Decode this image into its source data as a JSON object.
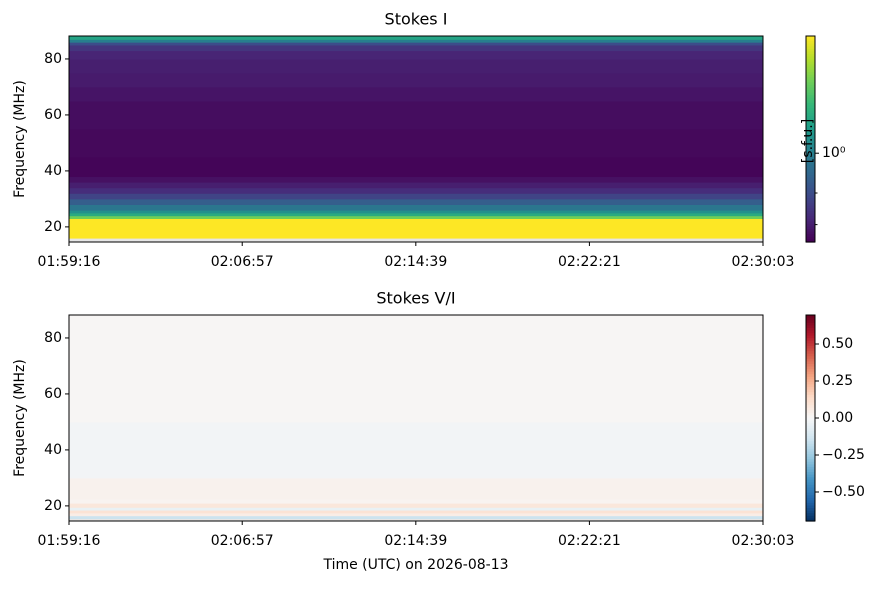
{
  "chart_data": [
    {
      "type": "heatmap",
      "title": "Stokes I",
      "ylabel": "Frequency (MHz)",
      "xlim": [
        "01:59:16",
        "02:30:03"
      ],
      "xticks": [
        "01:59:16",
        "02:06:57",
        "02:14:39",
        "02:22:21",
        "02:30:03"
      ],
      "ylim": [
        14.6,
        88.2
      ],
      "yticks": [
        20,
        40,
        60,
        80
      ],
      "freq_edges": [
        14.6,
        16,
        17,
        23,
        24,
        25,
        26,
        28,
        30,
        32,
        34,
        36,
        38,
        45,
        55,
        65,
        70,
        75,
        80,
        83,
        85,
        86,
        87,
        88.2
      ],
      "values": [
        null,
        4.5,
        4.5,
        2.5,
        1.6,
        1.2,
        0.9,
        0.7,
        0.55,
        0.45,
        0.4,
        0.36,
        0.33,
        0.34,
        0.35,
        0.37,
        0.39,
        0.4,
        0.42,
        0.48,
        0.6,
        1.0,
        1.5
      ],
      "colormap": "viridis",
      "cbar_scale": "log",
      "clim": [
        0.32,
        4.5
      ],
      "cbar_ticks": [
        {
          "value": 1,
          "label": "10⁰"
        }
      ],
      "cbar_minor_ticks": [
        0.4,
        0.6
      ],
      "cbar_label": "[s.f.u.]"
    },
    {
      "type": "heatmap",
      "title": "Stokes V/I",
      "ylabel": "Frequency (MHz)",
      "xlabel": "Time (UTC) on 2026-08-13",
      "xlim": [
        "01:59:16",
        "02:30:03"
      ],
      "xticks": [
        "01:59:16",
        "02:06:57",
        "02:14:39",
        "02:22:21",
        "02:30:03"
      ],
      "ylim": [
        14.6,
        88.2
      ],
      "yticks": [
        20,
        40,
        60,
        80
      ],
      "freq_edges": [
        14.6,
        15.5,
        16.5,
        17.5,
        18.5,
        19.5,
        21,
        22.5,
        30,
        50,
        88.2
      ],
      "values": [
        null,
        -0.15,
        0.05,
        0.1,
        -0.05,
        0.08,
        0.02,
        0.03,
        -0.02,
        0.01
      ],
      "colormap": "RdBu_r",
      "cbar_scale": "linear",
      "clim": [
        -0.696,
        0.696
      ],
      "cbar_ticks": [
        {
          "value": 0.5,
          "label": "0.50"
        },
        {
          "value": 0.25,
          "label": "0.25"
        },
        {
          "value": 0,
          "label": "0.00"
        },
        {
          "value": -0.25,
          "label": "−0.25"
        },
        {
          "value": -0.5,
          "label": "−0.50"
        }
      ]
    }
  ]
}
